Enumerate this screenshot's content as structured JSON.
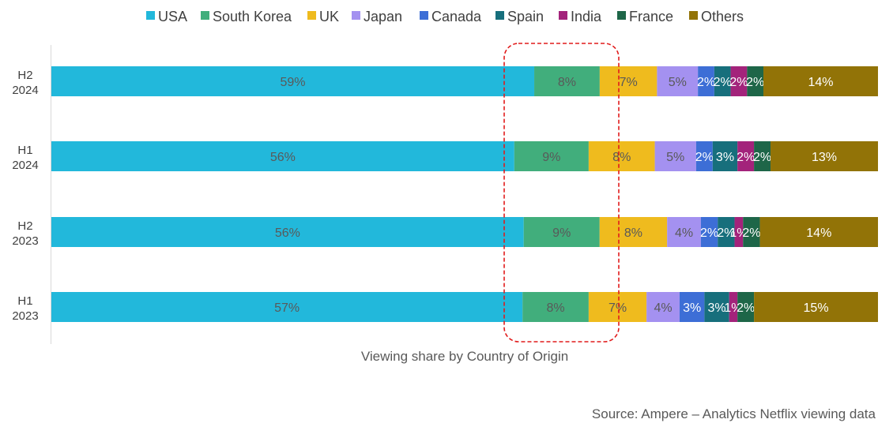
{
  "chart_data": {
    "type": "bar",
    "orientation": "horizontal",
    "stacked": "percent",
    "xlabel": "Viewing share by Country of Origin",
    "source": "Source: Ampere – Analytics Netflix viewing data",
    "legend_position": "top",
    "categories": [
      [
        "H2",
        "2024"
      ],
      [
        "H1",
        "2024"
      ],
      [
        "H2",
        "2023"
      ],
      [
        "H1",
        "2023"
      ]
    ],
    "series": [
      {
        "name": "USA",
        "color": "#22B8DB",
        "values": [
          59,
          56,
          56,
          57
        ]
      },
      {
        "name": "South Korea",
        "color": "#41AE7C",
        "values": [
          8,
          9,
          9,
          8
        ]
      },
      {
        "name": "UK",
        "color": "#EFBB1E",
        "values": [
          7,
          8,
          8,
          7
        ]
      },
      {
        "name": "Japan",
        "color": "#A491F0",
        "values": [
          5,
          5,
          4,
          4
        ]
      },
      {
        "name": "Canada",
        "color": "#3D6ED6",
        "values": [
          2,
          2,
          2,
          3
        ]
      },
      {
        "name": "Spain",
        "color": "#176F7C",
        "values": [
          2,
          3,
          2,
          3
        ]
      },
      {
        "name": "India",
        "color": "#A3237B",
        "values": [
          2,
          2,
          1,
          1
        ]
      },
      {
        "name": "France",
        "color": "#1E6648",
        "values": [
          2,
          2,
          2,
          2
        ]
      },
      {
        "name": "Others",
        "color": "#927307",
        "values": [
          14,
          13,
          14,
          15
        ]
      }
    ],
    "annotation": {
      "type": "dashed-rounded-rect",
      "color": "#E11B1B",
      "highlights": "South Korea"
    }
  }
}
